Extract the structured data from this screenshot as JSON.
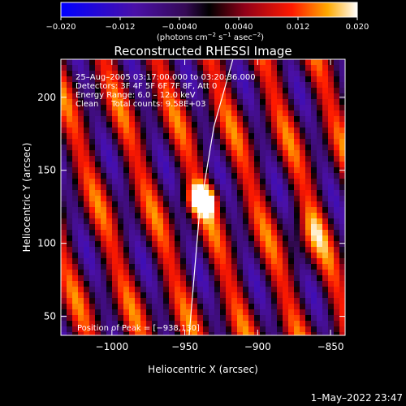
{
  "chart_data": {
    "type": "heatmap",
    "title": "Reconstructed RHESSI Image",
    "xlabel": "Heliocentric X (arcsec)",
    "ylabel": "Heliocentric Y (arcsec)",
    "xlim": [
      -1035,
      -840
    ],
    "ylim": [
      37,
      226
    ],
    "x_ticks": [
      -1000,
      -950,
      -900,
      -850
    ],
    "x_tick_labels": [
      "−1000",
      "−950",
      "−900",
      "−850"
    ],
    "y_ticks": [
      50,
      100,
      150,
      200
    ],
    "y_tick_labels": [
      "50",
      "100",
      "150",
      "200"
    ],
    "colorbar": {
      "range": [
        -0.02,
        0.02
      ],
      "ticks": [
        -0.02,
        -0.012,
        -0.004,
        0.004,
        0.012,
        0.02
      ],
      "tick_labels": [
        "−0.020",
        "−0.012",
        "−0.0040",
        "0.0040",
        "0.012",
        "0.020"
      ],
      "unit_text": "(photons cm",
      "unit_sup1": "−2",
      "unit_mid": " s",
      "unit_sup2": "−1",
      "unit_end": " asec",
      "unit_sup3": "−2",
      "unit_close": ")"
    },
    "annotations": [
      "25–Aug–2005 03:17:00.000 to 03:20:36.000",
      "Detectors: 3F 4F 5F 6F 7F 8F, Att 0",
      "Energy Range: 6.0 – 12.0 keV",
      "Clean     Total counts: 9.58E+03"
    ],
    "peak": {
      "x": -938,
      "y": 130,
      "label": "Position of Peak = [−938,130]"
    },
    "secondary_peak": {
      "x": -865,
      "y": 105
    },
    "fringe_direction_deg": 72,
    "limb_curve": [
      [
        -947,
        37
      ],
      [
        -940,
        120
      ],
      [
        -930,
        180
      ],
      [
        -917,
        226
      ]
    ]
  },
  "footer": {
    "timestamp": "1–May–2022 23:47"
  }
}
